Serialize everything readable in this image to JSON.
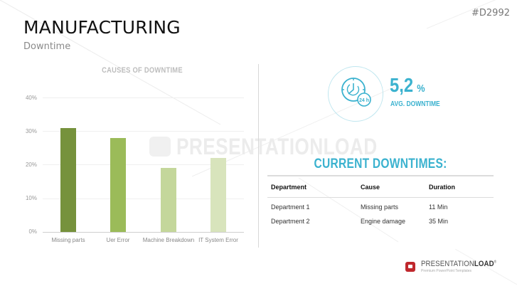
{
  "header": {
    "title": "MANUFACTURING",
    "subtitle": "Downtime",
    "code": "#D2992"
  },
  "watermark": "PRESENTATIONLOAD",
  "chart_data": {
    "type": "bar",
    "title": "CAUSES OF DOWNTIME",
    "categories": [
      "Missing parts",
      "Uer Error",
      "Machine Breakdown",
      "IT System Error"
    ],
    "values": [
      31,
      28,
      19,
      22
    ],
    "colors": [
      "#76923c",
      "#9bbb59",
      "#c4d79b",
      "#d8e4bc"
    ],
    "xlabel": "",
    "ylabel": "",
    "ylim": [
      0,
      40
    ],
    "yticks": [
      "0%",
      "10%",
      "20%",
      "30%",
      "40%"
    ],
    "grid": true,
    "legend": "none"
  },
  "stat": {
    "value": "5,2",
    "unit": "%",
    "label": "AVG. DOWNTIME",
    "icon": "clock-24h-icon",
    "icon_text": "24 h",
    "color": "#3bb2cf"
  },
  "downtimes": {
    "title": "CURRENT DOWNTIMES:",
    "columns": [
      "Department",
      "Cause",
      "Duration"
    ],
    "rows": [
      [
        "Department 1",
        "Missing parts",
        "11 Min"
      ],
      [
        "Department 2",
        "Engine damage",
        "35 Min"
      ]
    ]
  },
  "footer": {
    "brand_light": "PRESENTATION",
    "brand_bold": "LOAD",
    "registered": "®",
    "tagline": "Premium PowerPoint Templates"
  }
}
